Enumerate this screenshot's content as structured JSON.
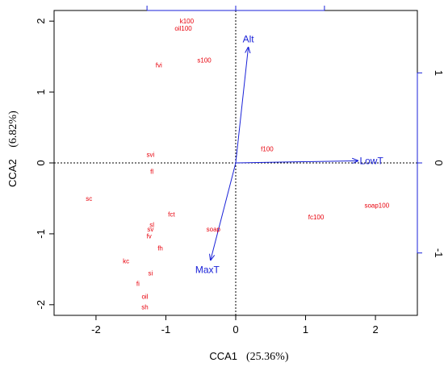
{
  "chart_data": {
    "type": "scatter",
    "subtype": "CCA biplot",
    "xlabel": "CCA1",
    "xlabel_pct": "(25.36%)",
    "ylabel": "CCA2",
    "ylabel_pct": "(6.82%)",
    "xlim": [
      -2.6,
      2.6
    ],
    "ylim": [
      -2.15,
      2.15
    ],
    "x_ticks": [
      "-2",
      "-1",
      "0",
      "1",
      "2"
    ],
    "y_ticks": [
      "-2",
      "-1",
      "0",
      "1",
      "2"
    ],
    "right_ticks": [
      "-1",
      "0",
      "1"
    ],
    "reference_lines": "dotted at x=0 and y=0",
    "colors": {
      "points": "#e8000b",
      "vectors": "#1a22d8",
      "axes": "#000000"
    },
    "sites": [
      {
        "label": "k100",
        "x": -0.7,
        "y": 2.0
      },
      {
        "label": "oil100",
        "x": -0.75,
        "y": 1.9
      },
      {
        "label": "fvi",
        "x": -1.1,
        "y": 1.38
      },
      {
        "label": "s100",
        "x": -0.45,
        "y": 1.45
      },
      {
        "label": "f100",
        "x": 0.45,
        "y": 0.2
      },
      {
        "label": "svi",
        "x": -1.22,
        "y": 0.12
      },
      {
        "label": "fl",
        "x": -1.2,
        "y": -0.12
      },
      {
        "label": "sc",
        "x": -2.1,
        "y": -0.5
      },
      {
        "label": "fct",
        "x": -0.92,
        "y": -0.72
      },
      {
        "label": "sl",
        "x": -1.2,
        "y": -0.87
      },
      {
        "label": "sv",
        "x": -1.22,
        "y": -0.93
      },
      {
        "label": "fv",
        "x": -1.24,
        "y": -1.03
      },
      {
        "label": "soap",
        "x": -0.32,
        "y": -0.93
      },
      {
        "label": "fh",
        "x": -1.08,
        "y": -1.2
      },
      {
        "label": "kc",
        "x": -1.57,
        "y": -1.38
      },
      {
        "label": "si",
        "x": -1.22,
        "y": -1.55
      },
      {
        "label": "fi",
        "x": -1.4,
        "y": -1.7
      },
      {
        "label": "oil",
        "x": -1.3,
        "y": -1.88
      },
      {
        "label": "sh",
        "x": -1.3,
        "y": -2.03
      },
      {
        "label": "fc100",
        "x": 1.15,
        "y": -0.76
      },
      {
        "label": "soap100",
        "x": 2.02,
        "y": -0.6
      }
    ],
    "vectors": [
      {
        "label": "Alt",
        "x": 0.18,
        "y": 1.63
      },
      {
        "label": "LowT",
        "x": 1.75,
        "y": 0.03
      },
      {
        "label": "MaxT",
        "x": -0.36,
        "y": -1.37
      }
    ]
  }
}
